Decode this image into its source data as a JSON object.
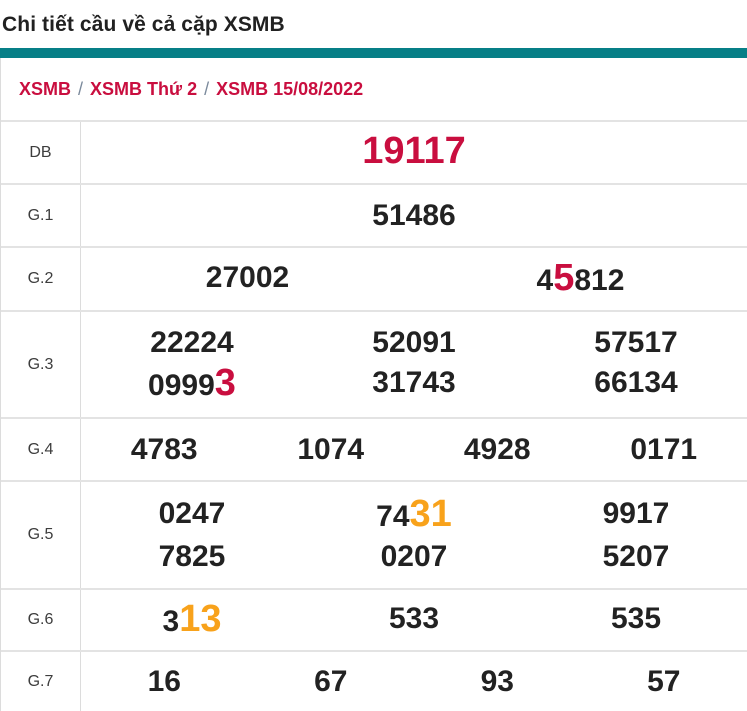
{
  "page_title": "Chi tiết cầu về cả cặp XSMB",
  "breadcrumb": {
    "separator": "/",
    "items": [
      {
        "label": "XSMB"
      },
      {
        "label": "XSMB Thứ 2"
      },
      {
        "label": "XSMB 15/08/2022"
      }
    ]
  },
  "colors": {
    "accent_teal": "#077f87",
    "highlight_red": "#c90e3f",
    "highlight_orange": "#f8a21b",
    "number_black": "#222222",
    "border_gray": "#e3e3e3"
  },
  "prize_table": {
    "rows": [
      {
        "label": "DB",
        "height": "h63",
        "lines": [
          [
            [
              {
                "t": "19117",
                "c": "red",
                "big": true
              }
            ]
          ]
        ]
      },
      {
        "label": "G.1",
        "height": "h63",
        "lines": [
          [
            [
              {
                "t": "51486"
              }
            ]
          ]
        ]
      },
      {
        "label": "G.2",
        "height": "h64",
        "lines": [
          [
            [
              {
                "t": "27002"
              }
            ],
            [
              {
                "t": "4"
              },
              {
                "t": "5",
                "c": "red",
                "big": true
              },
              {
                "t": "812"
              }
            ]
          ]
        ]
      },
      {
        "label": "G.3",
        "height": "two",
        "lines": [
          [
            [
              {
                "t": "22224"
              }
            ],
            [
              {
                "t": "52091"
              }
            ],
            [
              {
                "t": "57517"
              }
            ]
          ],
          [
            [
              {
                "t": "0999"
              },
              {
                "t": "3",
                "c": "red",
                "big": true
              }
            ],
            [
              {
                "t": "31743"
              }
            ],
            [
              {
                "t": "66134"
              }
            ]
          ]
        ]
      },
      {
        "label": "G.4",
        "height": "h63",
        "lines": [
          [
            [
              {
                "t": "4783"
              }
            ],
            [
              {
                "t": "1074"
              }
            ],
            [
              {
                "t": "4928"
              }
            ],
            [
              {
                "t": "0171"
              }
            ]
          ]
        ]
      },
      {
        "label": "G.5",
        "height": "h108",
        "lines": [
          [
            [
              {
                "t": "0247"
              }
            ],
            [
              {
                "t": "74"
              },
              {
                "t": "31",
                "c": "orange",
                "big": true
              }
            ],
            [
              {
                "t": "9917"
              }
            ]
          ],
          [
            [
              {
                "t": "7825"
              }
            ],
            [
              {
                "t": "0207"
              }
            ],
            [
              {
                "t": "5207"
              }
            ]
          ]
        ]
      },
      {
        "label": "G.6",
        "height": "h62",
        "lines": [
          [
            [
              {
                "t": "3"
              },
              {
                "t": "13",
                "c": "orange",
                "big": true
              }
            ],
            [
              {
                "t": "533"
              }
            ],
            [
              {
                "t": "535"
              }
            ]
          ]
        ]
      },
      {
        "label": "G.7",
        "height": "h61",
        "lines": [
          [
            [
              {
                "t": "16"
              }
            ],
            [
              {
                "t": "67"
              }
            ],
            [
              {
                "t": "93"
              }
            ],
            [
              {
                "t": "57"
              }
            ]
          ]
        ]
      }
    ]
  }
}
